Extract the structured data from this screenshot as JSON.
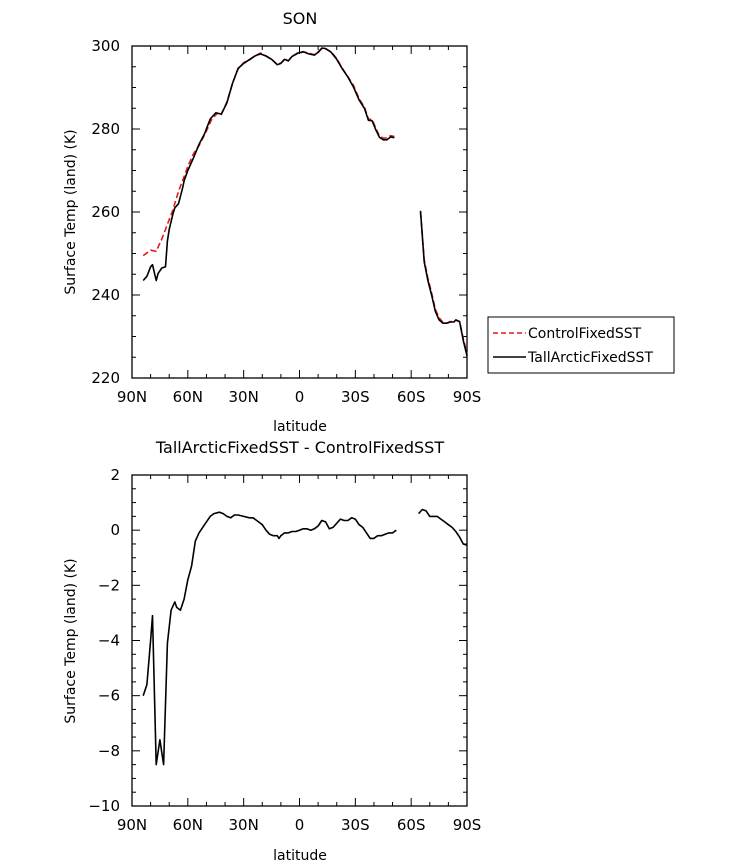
{
  "chart_data": [
    {
      "type": "line",
      "title": "SON",
      "xlabel": "latitude",
      "ylabel": "Surface Temp (land) (K)",
      "xlim": [
        90,
        -90
      ],
      "ylim": [
        220,
        300
      ],
      "xticks": [
        90,
        60,
        30,
        0,
        -30,
        -60,
        -90
      ],
      "xticklabels": [
        "90N",
        "60N",
        "30N",
        "0",
        "30S",
        "60S",
        "90S"
      ],
      "yticks": [
        220,
        240,
        260,
        280,
        300
      ],
      "yticklabels": [
        "220",
        "240",
        "260",
        "280",
        "300"
      ],
      "legend": "right",
      "series": [
        {
          "name": "ControlFixedSST",
          "color": "#e41a1c",
          "dash": "dashed",
          "segments": [
            [
              [
                84,
                249.5
              ],
              [
                80,
                250.8
              ],
              [
                77,
                250.5
              ],
              [
                74,
                253.5
              ],
              [
                71,
                257
              ],
              [
                68,
                260.5
              ],
              [
                65,
                265
              ],
              [
                62,
                268.5
              ],
              [
                60,
                271
              ],
              [
                57,
                274
              ],
              [
                54,
                276
              ],
              [
                50,
                279.5
              ],
              [
                47,
                282.5
              ],
              [
                44,
                283.8
              ],
              [
                42,
                283.5
              ],
              [
                39,
                286.5
              ],
              [
                36,
                291
              ],
              [
                33,
                294.5
              ],
              [
                30,
                296
              ],
              [
                27,
                296.6
              ],
              [
                24,
                297.6
              ],
              [
                21,
                298.3
              ],
              [
                18,
                297.6
              ],
              [
                15,
                296.8
              ],
              [
                12,
                295.6
              ],
              [
                10,
                295.9
              ],
              [
                8,
                296.9
              ],
              [
                6,
                296.4
              ],
              [
                4,
                297.5
              ],
              [
                1,
                298.2
              ],
              [
                -2,
                298.6
              ],
              [
                -5,
                298.3
              ],
              [
                -8,
                297.9
              ],
              [
                -10,
                298.4
              ],
              [
                -12,
                299.4
              ],
              [
                -14,
                299.3
              ],
              [
                -17,
                298.6
              ],
              [
                -20,
                297
              ],
              [
                -23,
                294.6
              ],
              [
                -26,
                292.6
              ],
              [
                -29,
                290.5
              ],
              [
                -32,
                287.3
              ],
              [
                -35,
                285.2
              ],
              [
                -37,
                282.4
              ],
              [
                -39,
                282.3
              ],
              [
                -41,
                280.2
              ],
              [
                -43,
                278.3
              ],
              [
                -45,
                277.8
              ],
              [
                -47,
                277.8
              ],
              [
                -49,
                278.4
              ],
              [
                -51,
                278.2
              ]
            ],
            [
              [
                -65,
                260
              ],
              [
                -67,
                248.5
              ],
              [
                -69,
                244
              ],
              [
                -71,
                240.5
              ],
              [
                -73,
                236.5
              ],
              [
                -75,
                234.5
              ],
              [
                -77,
                233.5
              ],
              [
                -79,
                233.2
              ],
              [
                -81,
                233.6
              ],
              [
                -83,
                233.7
              ],
              [
                -84,
                233.9
              ],
              [
                -86,
                233.6
              ],
              [
                -88,
                229.5
              ],
              [
                -90,
                225.8
              ]
            ]
          ]
        },
        {
          "name": "TallArcticFixedSST",
          "color": "#000000",
          "dash": "solid",
          "segments": [
            [
              [
                84,
                243.5
              ],
              [
                82,
                244.5
              ],
              [
                80,
                246.8
              ],
              [
                79,
                247.3
              ],
              [
                77,
                243.5
              ],
              [
                76,
                245.2
              ],
              [
                74,
                246.5
              ],
              [
                72,
                246.8
              ],
              [
                71,
                253
              ],
              [
                70,
                255.8
              ],
              [
                68,
                259.5
              ],
              [
                67,
                261
              ],
              [
                65,
                262
              ],
              [
                63,
                265.5
              ],
              [
                62,
                267.5
              ],
              [
                60,
                270
              ],
              [
                57,
                273
              ],
              [
                54,
                276.3
              ],
              [
                51,
                278.9
              ],
              [
                48,
                282.4
              ],
              [
                45,
                283.9
              ],
              [
                42,
                283.6
              ],
              [
                39,
                286.3
              ],
              [
                36,
                291
              ],
              [
                33,
                294.6
              ],
              [
                30,
                295.8
              ],
              [
                27,
                296.7
              ],
              [
                24,
                297.6
              ],
              [
                21,
                298.1
              ],
              [
                18,
                297.6
              ],
              [
                15,
                296.8
              ],
              [
                12,
                295.5
              ],
              [
                10,
                295.8
              ],
              [
                8,
                296.8
              ],
              [
                6,
                296.4
              ],
              [
                4,
                297.5
              ],
              [
                1,
                298.3
              ],
              [
                -2,
                298.6
              ],
              [
                -5,
                298.1
              ],
              [
                -8,
                297.8
              ],
              [
                -10,
                298.5
              ],
              [
                -12,
                299.5
              ],
              [
                -14,
                299.4
              ],
              [
                -17,
                298.5
              ],
              [
                -20,
                296.8
              ],
              [
                -23,
                294.5
              ],
              [
                -26,
                292.5
              ],
              [
                -29,
                290.1
              ],
              [
                -32,
                287
              ],
              [
                -35,
                284.9
              ],
              [
                -37,
                282.1
              ],
              [
                -39,
                282
              ],
              [
                -41,
                279.8
              ],
              [
                -43,
                278
              ],
              [
                -45,
                277.4
              ],
              [
                -47,
                277.4
              ],
              [
                -49,
                278.1
              ],
              [
                -51,
                277.9
              ]
            ],
            [
              [
                -65,
                260.3
              ],
              [
                -67,
                248
              ],
              [
                -69,
                243.5
              ],
              [
                -71,
                240
              ],
              [
                -73,
                236
              ],
              [
                -75,
                234
              ],
              [
                -77,
                233.2
              ],
              [
                -79,
                233.2
              ],
              [
                -81,
                233.5
              ],
              [
                -83,
                233.5
              ],
              [
                -84,
                234
              ],
              [
                -86,
                233.6
              ],
              [
                -88,
                229
              ],
              [
                -90,
                225.3
              ]
            ]
          ]
        }
      ]
    },
    {
      "type": "line",
      "title": "TallArcticFixedSST - ControlFixedSST",
      "xlabel": "latitude",
      "ylabel": "Surface Temp (land) (K)",
      "xlim": [
        90,
        -90
      ],
      "ylim": [
        -10,
        2
      ],
      "xticks": [
        90,
        60,
        30,
        0,
        -30,
        -60,
        -90
      ],
      "xticklabels": [
        "90N",
        "60N",
        "30N",
        "0",
        "30S",
        "60S",
        "90S"
      ],
      "yticks": [
        -10,
        -8,
        -6,
        -4,
        -2,
        0,
        2
      ],
      "yticklabels": [
        "−10",
        "−8",
        "−6",
        "−4",
        "−2",
        "0",
        "2"
      ],
      "series": [
        {
          "name": "TallArcticFixedSST - ControlFixedSST",
          "color": "#000000",
          "dash": "solid",
          "segments": [
            [
              [
                84,
                -6
              ],
              [
                82,
                -5.6
              ],
              [
                80,
                -4
              ],
              [
                79,
                -3.1
              ],
              [
                77,
                -8.5
              ],
              [
                75,
                -7.6
              ],
              [
                73,
                -8.5
              ],
              [
                71,
                -4.1
              ],
              [
                69,
                -2.9
              ],
              [
                67,
                -2.6
              ],
              [
                66,
                -2.8
              ],
              [
                64,
                -2.9
              ],
              [
                62,
                -2.5
              ],
              [
                60,
                -1.8
              ],
              [
                58,
                -1.3
              ],
              [
                56,
                -0.4
              ],
              [
                54,
                -0.1
              ],
              [
                52,
                0.1
              ],
              [
                50,
                0.3
              ],
              [
                48,
                0.5
              ],
              [
                46,
                0.6
              ],
              [
                43,
                0.65
              ],
              [
                41,
                0.6
              ],
              [
                39,
                0.5
              ],
              [
                37,
                0.45
              ],
              [
                35,
                0.55
              ],
              [
                33,
                0.55
              ],
              [
                30,
                0.5
              ],
              [
                27,
                0.45
              ],
              [
                25,
                0.45
              ],
              [
                23,
                0.35
              ],
              [
                20,
                0.2
              ],
              [
                18,
                0
              ],
              [
                16,
                -0.15
              ],
              [
                14,
                -0.2
              ],
              [
                12,
                -0.2
              ],
              [
                11,
                -0.3
              ],
              [
                10,
                -0.2
              ],
              [
                8,
                -0.1
              ],
              [
                6,
                -0.1
              ],
              [
                4,
                -0.05
              ],
              [
                2,
                -0.05
              ],
              [
                0,
                0
              ],
              [
                -2,
                0.05
              ],
              [
                -4,
                0.05
              ],
              [
                -6,
                0
              ],
              [
                -8,
                0.05
              ],
              [
                -10,
                0.15
              ],
              [
                -12,
                0.35
              ],
              [
                -14,
                0.3
              ],
              [
                -16,
                0.05
              ],
              [
                -18,
                0.1
              ],
              [
                -20,
                0.25
              ],
              [
                -22,
                0.4
              ],
              [
                -24,
                0.35
              ],
              [
                -26,
                0.35
              ],
              [
                -28,
                0.45
              ],
              [
                -30,
                0.4
              ],
              [
                -32,
                0.2
              ],
              [
                -34,
                0.1
              ],
              [
                -36,
                -0.1
              ],
              [
                -38,
                -0.3
              ],
              [
                -40,
                -0.3
              ],
              [
                -42,
                -0.2
              ],
              [
                -44,
                -0.2
              ],
              [
                -46,
                -0.15
              ],
              [
                -48,
                -0.1
              ],
              [
                -50,
                -0.1
              ],
              [
                -52,
                0
              ]
            ],
            [
              [
                -64,
                0.6
              ],
              [
                -66,
                0.75
              ],
              [
                -68,
                0.7
              ],
              [
                -70,
                0.5
              ],
              [
                -72,
                0.5
              ],
              [
                -74,
                0.5
              ],
              [
                -76,
                0.4
              ],
              [
                -78,
                0.3
              ],
              [
                -80,
                0.2
              ],
              [
                -82,
                0.1
              ],
              [
                -84,
                -0.05
              ],
              [
                -86,
                -0.25
              ],
              [
                -88,
                -0.5
              ],
              [
                -90,
                -0.55
              ]
            ]
          ]
        }
      ]
    }
  ]
}
